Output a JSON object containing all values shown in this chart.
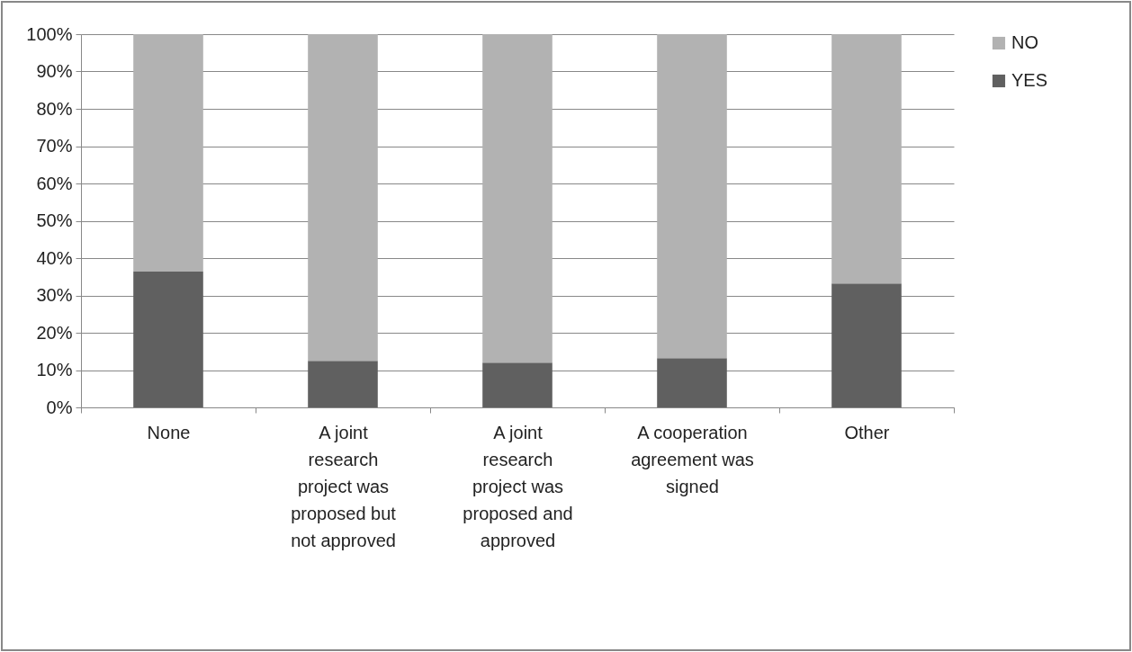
{
  "chart_data": {
    "type": "bar",
    "stacked": true,
    "categories": [
      "None",
      "A joint research project was proposed but not approved",
      "A joint research project was proposed and approved",
      "A cooperation agreement was signed",
      "Other"
    ],
    "series": [
      {
        "name": "YES",
        "color": "#606060",
        "values": [
          36.4,
          12.5,
          12,
          13.2,
          33.2
        ]
      },
      {
        "name": "NO",
        "color": "#b2b2b2",
        "values": [
          63.6,
          87.5,
          88,
          86.8,
          66.8
        ]
      }
    ],
    "ylim": [
      0,
      100
    ],
    "yticks": [
      {
        "value": 0,
        "label": "0%"
      },
      {
        "value": 10,
        "label": "10%"
      },
      {
        "value": 20,
        "label": "20%"
      },
      {
        "value": 30,
        "label": "30%"
      },
      {
        "value": 40,
        "label": "40%"
      },
      {
        "value": 50,
        "label": "50%"
      },
      {
        "value": 60,
        "label": "60%"
      },
      {
        "value": 70,
        "label": "70%"
      },
      {
        "value": 80,
        "label": "80%"
      },
      {
        "value": 90,
        "label": "90%"
      },
      {
        "value": 100,
        "label": "100%"
      }
    ],
    "grid": "y",
    "legend": "right"
  }
}
